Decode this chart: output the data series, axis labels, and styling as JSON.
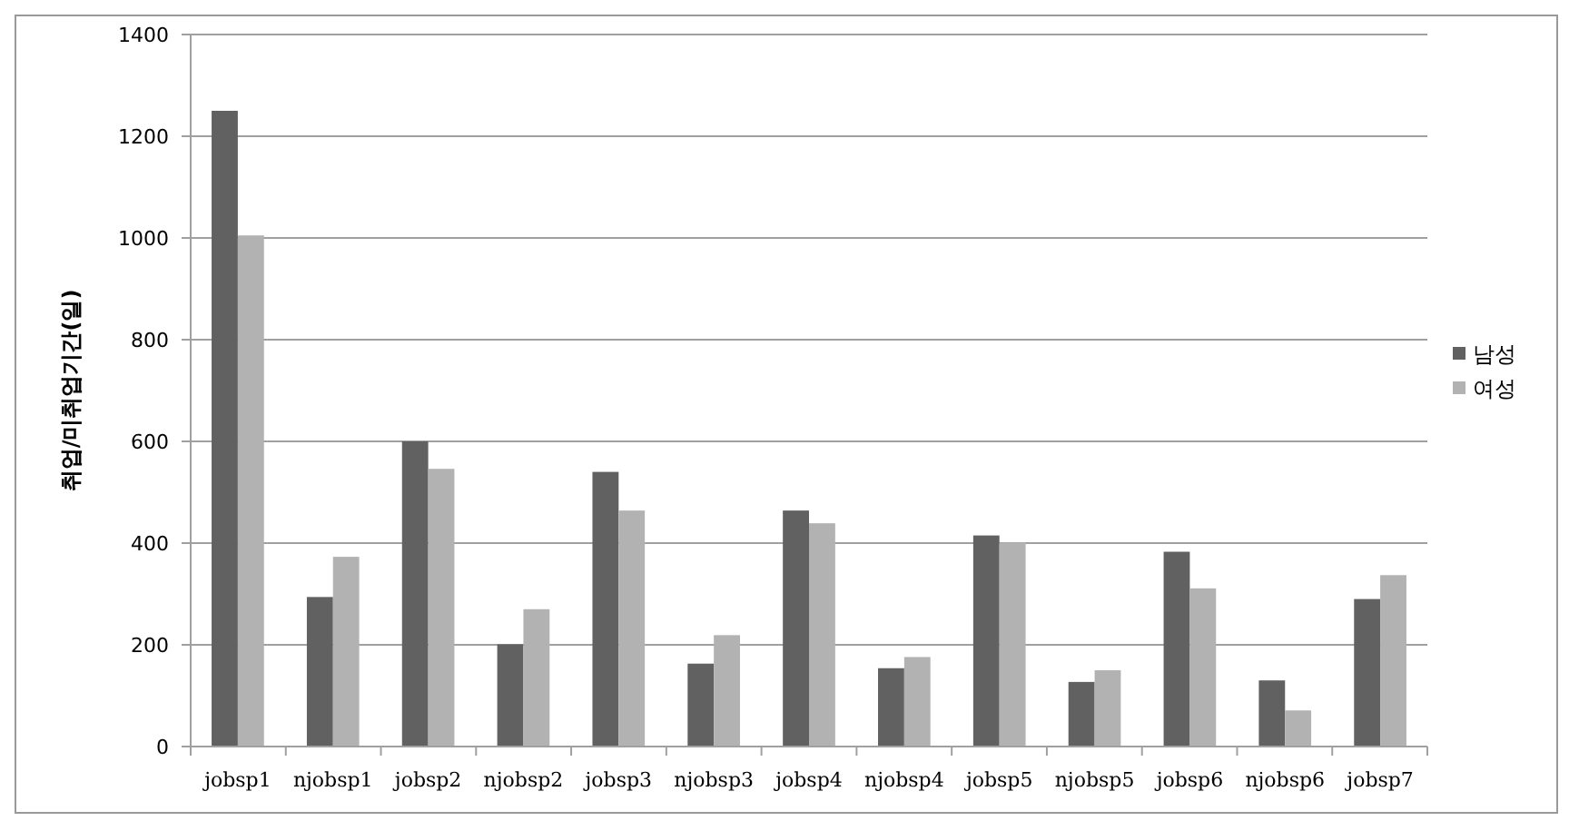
{
  "chart_data": {
    "type": "bar",
    "ylabel": "취업/미취업기간(일)",
    "categories": [
      "jobsp1",
      "njobsp1",
      "jobsp2",
      "njobsp2",
      "jobsp3",
      "njobsp3",
      "jobsp4",
      "njobsp4",
      "jobsp5",
      "njobsp5",
      "jobsp6",
      "njobsp6",
      "jobsp7"
    ],
    "series": [
      {
        "name": "남성",
        "color": "#616161",
        "values": [
          1250,
          294,
          600,
          201,
          540,
          163,
          464,
          154,
          415,
          127,
          383,
          130,
          290
        ]
      },
      {
        "name": "여성",
        "color": "#b2b2b2",
        "values": [
          1005,
          373,
          546,
          270,
          464,
          219,
          439,
          176,
          401,
          150,
          311,
          71,
          337
        ]
      }
    ],
    "ylim": [
      0,
      1400
    ],
    "yticks": [
      0,
      200,
      400,
      600,
      800,
      1000,
      1200,
      1400
    ],
    "grid": "y",
    "legend": "right"
  }
}
